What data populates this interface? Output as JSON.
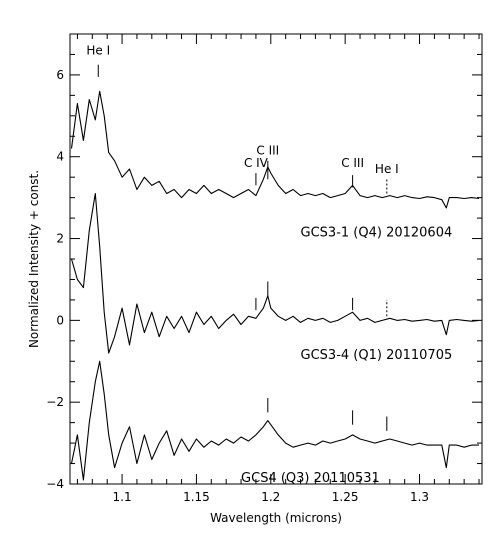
{
  "chart_data": {
    "type": "line",
    "xlabel": "Wavelength (microns)",
    "ylabel": "Normalized Intensity + const.",
    "xlim": [
      1.065,
      1.342
    ],
    "ylim": [
      -4,
      7
    ],
    "grid": false,
    "xticks": {
      "major": [
        1.1,
        1.15,
        1.2,
        1.25,
        1.3
      ],
      "labels": [
        "1.1",
        "1.15",
        "1.2",
        "1.25",
        "1.3"
      ],
      "minor_step": 0.01
    },
    "yticks": {
      "major": [
        -4,
        -2,
        0,
        2,
        4,
        6
      ],
      "labels": [
        "−4",
        "−2",
        "0",
        "2",
        "4",
        "6"
      ],
      "minor_step": 0.5
    },
    "series": [
      {
        "name": "GCS3-1 (Q4)  20120604",
        "label_at": [
          1.22,
          2.05
        ],
        "baseline": 3.0,
        "x": [
          1.066,
          1.07,
          1.074,
          1.078,
          1.082,
          1.085,
          1.088,
          1.091,
          1.095,
          1.1,
          1.105,
          1.11,
          1.115,
          1.12,
          1.125,
          1.13,
          1.135,
          1.14,
          1.145,
          1.15,
          1.155,
          1.16,
          1.165,
          1.17,
          1.175,
          1.18,
          1.185,
          1.19,
          1.195,
          1.198,
          1.2,
          1.205,
          1.21,
          1.215,
          1.22,
          1.225,
          1.23,
          1.235,
          1.24,
          1.245,
          1.25,
          1.255,
          1.26,
          1.265,
          1.27,
          1.275,
          1.28,
          1.285,
          1.29,
          1.295,
          1.3,
          1.305,
          1.31,
          1.315,
          1.318,
          1.32,
          1.325,
          1.33,
          1.335,
          1.34
        ],
        "y": [
          4.2,
          5.3,
          4.4,
          5.4,
          4.9,
          5.6,
          5.0,
          4.1,
          3.9,
          3.5,
          3.7,
          3.2,
          3.5,
          3.3,
          3.4,
          3.1,
          3.2,
          3.0,
          3.2,
          3.1,
          3.3,
          3.1,
          3.2,
          3.1,
          3.0,
          3.1,
          3.2,
          3.05,
          3.45,
          3.75,
          3.6,
          3.3,
          3.1,
          3.2,
          3.05,
          3.1,
          3.05,
          3.1,
          3.0,
          3.05,
          3.1,
          3.3,
          3.05,
          3.0,
          3.05,
          3.0,
          3.05,
          3.0,
          3.05,
          3.0,
          2.98,
          3.02,
          3.0,
          2.95,
          2.75,
          3.0,
          3.0,
          2.98,
          3.0,
          2.98
        ]
      },
      {
        "name": "GCS3-4 (Q1)  20110705",
        "label_at": [
          1.22,
          -0.95
        ],
        "baseline": 0.0,
        "x": [
          1.066,
          1.07,
          1.074,
          1.078,
          1.082,
          1.085,
          1.088,
          1.091,
          1.095,
          1.1,
          1.105,
          1.11,
          1.115,
          1.12,
          1.125,
          1.13,
          1.135,
          1.14,
          1.145,
          1.15,
          1.155,
          1.16,
          1.165,
          1.17,
          1.175,
          1.18,
          1.185,
          1.19,
          1.195,
          1.198,
          1.2,
          1.205,
          1.21,
          1.215,
          1.22,
          1.225,
          1.23,
          1.235,
          1.24,
          1.245,
          1.25,
          1.255,
          1.26,
          1.265,
          1.27,
          1.275,
          1.28,
          1.285,
          1.29,
          1.295,
          1.3,
          1.305,
          1.31,
          1.315,
          1.318,
          1.32,
          1.325,
          1.33,
          1.335,
          1.34
        ],
        "y": [
          1.5,
          1.0,
          0.8,
          2.2,
          3.1,
          1.8,
          0.2,
          -0.8,
          -0.4,
          0.3,
          -0.6,
          0.4,
          -0.3,
          0.2,
          -0.4,
          0.1,
          -0.2,
          0.1,
          -0.3,
          0.2,
          -0.1,
          0.1,
          -0.2,
          0.0,
          0.15,
          -0.1,
          0.1,
          0.05,
          0.3,
          0.6,
          0.3,
          0.1,
          0.0,
          0.1,
          -0.05,
          0.05,
          0.0,
          0.05,
          -0.05,
          0.0,
          0.1,
          0.2,
          0.0,
          0.05,
          -0.05,
          0.0,
          0.05,
          0.0,
          0.02,
          -0.02,
          0.0,
          0.02,
          -0.02,
          0.0,
          -0.35,
          0.0,
          0.02,
          0.0,
          -0.02,
          0.0
        ]
      },
      {
        "name": "GCS4 (Q3)  20110531",
        "label_at": [
          1.18,
          -3.95
        ],
        "baseline": -3.0,
        "x": [
          1.066,
          1.07,
          1.074,
          1.078,
          1.082,
          1.085,
          1.088,
          1.091,
          1.095,
          1.1,
          1.105,
          1.11,
          1.115,
          1.12,
          1.125,
          1.13,
          1.135,
          1.14,
          1.145,
          1.15,
          1.155,
          1.16,
          1.165,
          1.17,
          1.175,
          1.18,
          1.185,
          1.19,
          1.195,
          1.198,
          1.2,
          1.205,
          1.21,
          1.215,
          1.22,
          1.225,
          1.23,
          1.235,
          1.24,
          1.245,
          1.25,
          1.255,
          1.26,
          1.265,
          1.27,
          1.275,
          1.28,
          1.285,
          1.29,
          1.295,
          1.3,
          1.305,
          1.31,
          1.315,
          1.318,
          1.32,
          1.325,
          1.33,
          1.335,
          1.34
        ],
        "y": [
          -3.5,
          -2.8,
          -3.9,
          -2.5,
          -1.5,
          -1.0,
          -1.8,
          -2.8,
          -3.6,
          -3.0,
          -2.6,
          -3.5,
          -2.8,
          -3.4,
          -3.0,
          -2.7,
          -3.3,
          -2.9,
          -3.2,
          -2.9,
          -3.1,
          -2.95,
          -3.05,
          -2.9,
          -3.0,
          -2.85,
          -2.95,
          -2.8,
          -2.6,
          -2.45,
          -2.55,
          -2.8,
          -3.0,
          -3.1,
          -3.05,
          -3.0,
          -3.05,
          -2.95,
          -3.0,
          -2.95,
          -2.9,
          -2.8,
          -2.9,
          -2.95,
          -3.0,
          -2.95,
          -2.9,
          -2.95,
          -3.0,
          -3.05,
          -3.0,
          -3.05,
          -3.05,
          -3.05,
          -3.6,
          -3.05,
          -3.05,
          -3.1,
          -3.05,
          -3.05
        ]
      }
    ],
    "annotations": [
      {
        "text": "He I",
        "x": 1.084,
        "y": 6.5
      },
      {
        "text": "C IV",
        "x": 1.19,
        "y": 3.75
      },
      {
        "text": "C III",
        "x": 1.198,
        "y": 4.05
      },
      {
        "text": "C III",
        "x": 1.255,
        "y": 3.75
      },
      {
        "text": "He I",
        "x": 1.278,
        "y": 3.6
      }
    ],
    "line_markers": [
      {
        "x": 1.084,
        "y1": 5.95,
        "y2": 6.25,
        "style": "solid"
      },
      {
        "x": 1.19,
        "y1": 3.3,
        "y2": 3.6,
        "style": "solid"
      },
      {
        "x": 1.198,
        "y1": 3.45,
        "y2": 3.9,
        "style": "solid"
      },
      {
        "x": 1.255,
        "y1": 3.25,
        "y2": 3.55,
        "style": "solid"
      },
      {
        "x": 1.278,
        "y1": 3.1,
        "y2": 3.45,
        "style": "dotted"
      },
      {
        "x": 1.19,
        "y1": 0.25,
        "y2": 0.55,
        "style": "solid"
      },
      {
        "x": 1.198,
        "y1": 0.6,
        "y2": 0.95,
        "style": "solid"
      },
      {
        "x": 1.255,
        "y1": 0.25,
        "y2": 0.55,
        "style": "solid"
      },
      {
        "x": 1.278,
        "y1": 0.1,
        "y2": 0.5,
        "style": "dotted"
      },
      {
        "x": 1.198,
        "y1": -2.25,
        "y2": -1.9,
        "style": "solid"
      },
      {
        "x": 1.255,
        "y1": -2.55,
        "y2": -2.2,
        "style": "solid"
      },
      {
        "x": 1.278,
        "y1": -2.7,
        "y2": -2.35,
        "style": "solid"
      }
    ]
  }
}
